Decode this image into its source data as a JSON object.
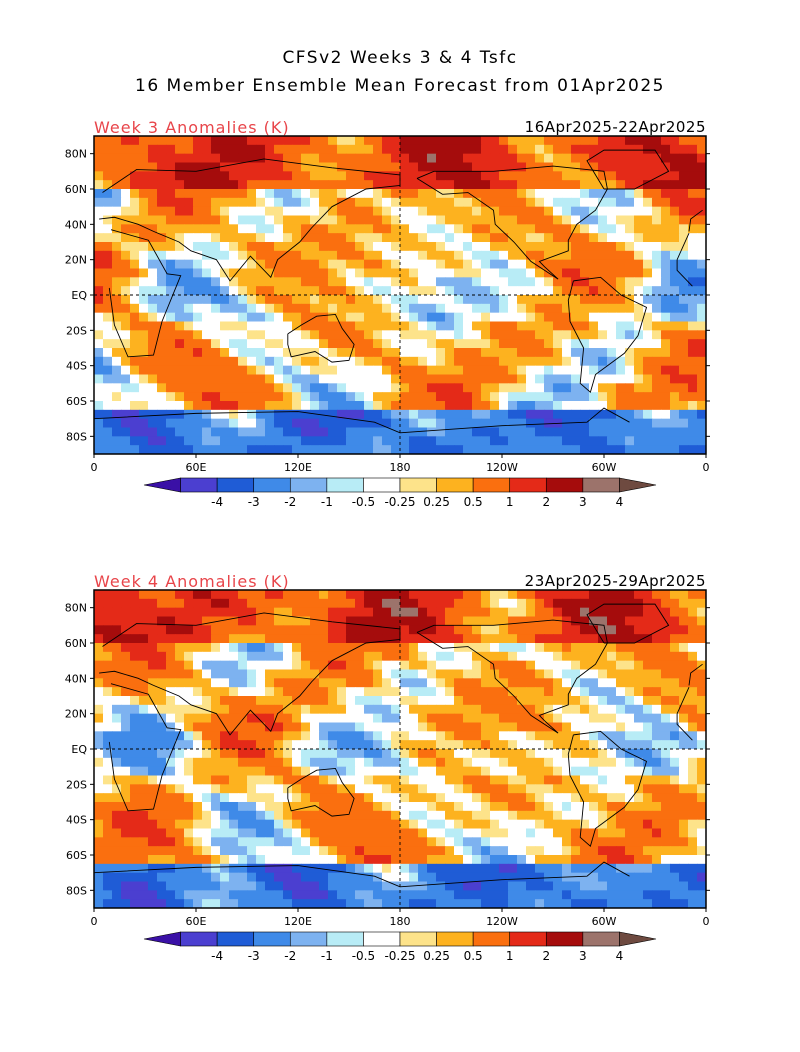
{
  "title_line1": "CFSv2 Weeks 3 & 4 Tsfc",
  "title_line2": "16 Member Ensemble Mean Forecast from 01Apr2025",
  "panels": [
    {
      "label": "Week 3 Anomalies (K)",
      "dates": "16Apr2025-22Apr2025"
    },
    {
      "label": "Week 4 Anomalies (K)",
      "dates": "23Apr2025-29Apr2025"
    }
  ],
  "lat_ticks": [
    "80N",
    "60N",
    "40N",
    "20N",
    "EQ",
    "20S",
    "40S",
    "60S",
    "80S"
  ],
  "lon_ticks": [
    "0",
    "60E",
    "120E",
    "180",
    "120W",
    "60W",
    "0"
  ],
  "colorbar": {
    "labels": [
      "-4",
      "-3",
      "-2",
      "-1",
      "-0.5",
      "-0.25",
      "0.25",
      "0.5",
      "1",
      "2",
      "3",
      "4"
    ],
    "colors": [
      "#3a10a6",
      "#4b3fd0",
      "#1f5cd6",
      "#3f8ae8",
      "#7db2f0",
      "#b8ecf6",
      "#ffffff",
      "#fde38a",
      "#fdb21f",
      "#fa6f0f",
      "#e42a18",
      "#a50c0c",
      "#9c736b",
      "#6e4a40"
    ]
  },
  "colors": {
    "land_outline": "#000000",
    "title_red": "#e8454a"
  }
}
